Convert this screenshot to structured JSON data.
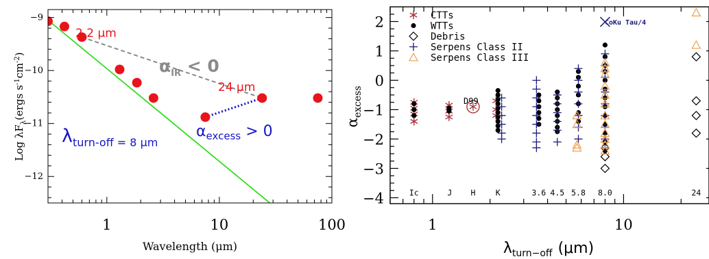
{
  "colors": {
    "red": "#e8141c",
    "green": "#33dd22",
    "gray": "#8a8a8a",
    "blue": "#1616c8",
    "maroon": "#a8323c",
    "navy": "#1a1a7a",
    "orange": "#eea050",
    "black": "#000000"
  },
  "chart_data": [
    {
      "type": "scatter",
      "xscale": "log",
      "xlim": [
        0.3,
        100
      ],
      "ylim": [
        -12.5,
        -8.85
      ],
      "xlabel": "Wavelength (μm)",
      "ylabel": "Log λF",
      "ylabel_sub": "λ",
      "ylabel_unit": "(ergs s",
      "ylabel_unit_sup1": "-1",
      "ylabel_unit_mid": "cm",
      "ylabel_unit_sup2": "-2",
      "ylabel_unit_end": ")",
      "x_ticks": [
        1,
        10,
        100
      ],
      "x_ticklabels": [
        "1",
        "10",
        "100"
      ],
      "y_ticks": [
        -9,
        -10,
        -11,
        -12
      ],
      "y_ticklabels": [
        "−9",
        "−10",
        "−11",
        "−12"
      ],
      "points": [
        {
          "x": 0.3,
          "y": -9.07
        },
        {
          "x": 0.42,
          "y": -9.17
        },
        {
          "x": 0.6,
          "y": -9.37
        },
        {
          "x": 1.3,
          "y": -9.98
        },
        {
          "x": 1.85,
          "y": -10.23
        },
        {
          "x": 2.6,
          "y": -10.52
        },
        {
          "x": 7.5,
          "y": -10.88
        },
        {
          "x": 24,
          "y": -10.52
        },
        {
          "x": 75,
          "y": -10.52
        }
      ],
      "photosphere_line": {
        "x": [
          0.3,
          30
        ],
        "y": [
          -9.05,
          -12.55
        ]
      },
      "alpha_ir_line": {
        "x": [
          0.6,
          24
        ],
        "y": [
          -9.37,
          -10.52
        ]
      },
      "alpha_excess_line": {
        "x": [
          7.5,
          24
        ],
        "y": [
          -10.88,
          -10.52
        ]
      },
      "annotations": {
        "ann_22": "2.2 μm",
        "ann_24": "24 μm",
        "alpha_ir": "α",
        "alpha_ir_sub": "IR",
        "alpha_ir_rel": " < 0",
        "turnoff": "λ",
        "turnoff_sub": "turn-off",
        "turnoff_val": " = 8 μm",
        "alpha_ex": "α",
        "alpha_ex_sub": "excess",
        "alpha_ex_rel": " > 0"
      }
    },
    {
      "type": "scatter",
      "xscale": "log",
      "xlim": [
        0.6,
        28
      ],
      "ylim": [
        -4.2,
        2.5
      ],
      "xlabel": "λ",
      "xlabel_sub": "turn−off",
      "xlabel_unit": "(μm)",
      "ylabel": "α",
      "ylabel_sub": "excess",
      "x_ticks": [
        1,
        10
      ],
      "x_ticklabels": [
        "1",
        "10"
      ],
      "y_ticks": [
        2,
        1,
        0,
        -1,
        -2,
        -3,
        -4
      ],
      "y_ticklabels": [
        "2",
        "1",
        "0",
        "−1",
        "−2",
        "−3",
        "−4"
      ],
      "band_labels": [
        {
          "label": "Ic",
          "x": 0.8
        },
        {
          "label": "J",
          "x": 1.23
        },
        {
          "label": "H",
          "x": 1.63
        },
        {
          "label": "K",
          "x": 2.2
        },
        {
          "label": "3.6",
          "x": 3.6
        },
        {
          "label": "4.5",
          "x": 4.5
        },
        {
          "label": "5.8",
          "x": 5.8
        },
        {
          "label": "8.0",
          "x": 8.0
        },
        {
          "label": "24",
          "x": 24
        }
      ],
      "legend": [
        {
          "name": "CTTs",
          "marker": "asterisk"
        },
        {
          "name": "WTTs",
          "marker": "dot"
        },
        {
          "name": "Debris",
          "marker": "diamond"
        },
        {
          "name": "Serpens Class II",
          "marker": "plus"
        },
        {
          "name": "Serpens Class III",
          "marker": "triangle"
        }
      ],
      "legend_position": "top-left",
      "annotation_coku": "CoKu Tau/4",
      "annotation_d99": "D99",
      "series": [
        {
          "name": "CTTs",
          "marker": "asterisk",
          "points": [
            [
              0.8,
              -0.75
            ],
            [
              0.8,
              -0.95
            ],
            [
              0.8,
              -1.15
            ],
            [
              0.8,
              -1.4
            ],
            [
              1.22,
              -0.85
            ],
            [
              1.22,
              -1.05
            ],
            [
              1.22,
              -1.25
            ],
            [
              2.15,
              -0.7
            ],
            [
              2.15,
              -1.0
            ],
            [
              2.15,
              -1.2
            ]
          ]
        },
        {
          "name": "WTTs",
          "marker": "dot",
          "points": [
            [
              0.8,
              -0.8
            ],
            [
              0.8,
              -1.0
            ],
            [
              0.8,
              -1.2
            ],
            [
              1.22,
              -0.95
            ],
            [
              1.22,
              -1.05
            ],
            [
              2.2,
              -0.35
            ],
            [
              2.2,
              -0.5
            ],
            [
              2.2,
              -0.65
            ],
            [
              2.2,
              -0.8
            ],
            [
              2.2,
              -0.95
            ],
            [
              2.2,
              -1.1
            ],
            [
              2.2,
              -1.25
            ],
            [
              2.2,
              -1.4
            ],
            [
              2.2,
              -1.55
            ],
            [
              2.2,
              -1.7
            ],
            [
              3.6,
              -0.5
            ],
            [
              3.6,
              -0.7
            ],
            [
              3.6,
              -0.9
            ],
            [
              3.6,
              -1.1
            ],
            [
              3.6,
              -1.3
            ],
            [
              3.6,
              -1.5
            ],
            [
              4.5,
              -0.4
            ],
            [
              4.5,
              -0.6
            ],
            [
              4.5,
              -0.8
            ],
            [
              4.5,
              -1.0
            ],
            [
              4.5,
              -1.2
            ],
            [
              4.5,
              -1.4
            ],
            [
              4.5,
              -1.6
            ],
            [
              4.5,
              -1.75
            ],
            [
              5.8,
              0.3
            ],
            [
              5.8,
              0.1
            ],
            [
              5.8,
              -0.2
            ],
            [
              5.8,
              -0.5
            ],
            [
              5.8,
              -0.8
            ],
            [
              5.8,
              -1.1
            ],
            [
              5.8,
              -1.4
            ],
            [
              8.0,
              1.2
            ],
            [
              8.0,
              0.8
            ],
            [
              8.0,
              0.5
            ],
            [
              8.0,
              0.3
            ],
            [
              8.0,
              0.0
            ],
            [
              8.0,
              -0.3
            ],
            [
              8.0,
              -0.6
            ],
            [
              8.0,
              -0.9
            ],
            [
              8.0,
              -1.2
            ],
            [
              8.0,
              -1.5
            ],
            [
              8.0,
              -1.8
            ],
            [
              8.0,
              -2.1
            ],
            [
              8.0,
              -2.4
            ]
          ]
        },
        {
          "name": "Debris",
          "marker": "diamond",
          "points": [
            [
              8.0,
              -2.3
            ],
            [
              8.0,
              -2.6
            ],
            [
              8.0,
              -3.0
            ],
            [
              24,
              0.8
            ],
            [
              24,
              -0.7
            ],
            [
              24,
              -1.2
            ],
            [
              24,
              -1.8
            ]
          ]
        },
        {
          "name": "Serpens Class II",
          "marker": "plus",
          "points": [
            [
              2.3,
              -0.6
            ],
            [
              2.3,
              -0.9
            ],
            [
              2.3,
              -1.2
            ],
            [
              2.3,
              -1.5
            ],
            [
              2.3,
              -1.8
            ],
            [
              2.3,
              -2.0
            ],
            [
              3.5,
              0.0
            ],
            [
              3.5,
              -0.3
            ],
            [
              3.5,
              -0.6
            ],
            [
              3.5,
              -0.9
            ],
            [
              3.5,
              -1.2
            ],
            [
              3.5,
              -1.5
            ],
            [
              3.5,
              -1.8
            ],
            [
              3.5,
              -2.1
            ],
            [
              3.5,
              -2.3
            ],
            [
              4.5,
              -0.5
            ],
            [
              4.5,
              -0.8
            ],
            [
              4.5,
              -1.1
            ],
            [
              4.5,
              -1.4
            ],
            [
              4.5,
              -1.7
            ],
            [
              4.5,
              -2.1
            ],
            [
              5.8,
              0.4
            ],
            [
              5.8,
              0.0
            ],
            [
              5.8,
              -0.4
            ],
            [
              5.8,
              -0.8
            ],
            [
              5.8,
              -1.2
            ],
            [
              5.8,
              -1.6
            ],
            [
              5.8,
              -2.0
            ],
            [
              8.0,
              0.9
            ],
            [
              8.0,
              0.5
            ],
            [
              8.0,
              0.1
            ],
            [
              8.0,
              -0.4
            ],
            [
              8.0,
              -0.8
            ],
            [
              8.0,
              -1.2
            ],
            [
              8.0,
              -1.6
            ],
            [
              8.0,
              -2.0
            ],
            [
              8.0,
              -2.3
            ]
          ]
        },
        {
          "name": "Serpens Class III",
          "marker": "triangle",
          "points": [
            [
              5.7,
              -1.2
            ],
            [
              5.7,
              -1.5
            ],
            [
              5.7,
              -2.2
            ],
            [
              5.7,
              -2.3
            ],
            [
              8.0,
              0.6
            ],
            [
              8.0,
              0.4
            ],
            [
              8.0,
              0.2
            ],
            [
              8.0,
              -0.2
            ],
            [
              8.0,
              -0.5
            ],
            [
              8.0,
              -0.8
            ],
            [
              8.0,
              -1.2
            ],
            [
              8.0,
              -1.5
            ],
            [
              8.0,
              -1.8
            ],
            [
              8.0,
              -2.0
            ],
            [
              8.0,
              -2.2
            ],
            [
              8.0,
              -2.4
            ],
            [
              24,
              2.3
            ],
            [
              24,
              1.2
            ]
          ]
        },
        {
          "name": "CoKu Tau/4",
          "marker": "cross",
          "points": [
            [
              8.0,
              2.8
            ]
          ]
        },
        {
          "name": "D99",
          "marker": "circle-asterisk",
          "points": [
            [
              1.63,
              -0.9
            ]
          ]
        }
      ]
    }
  ]
}
